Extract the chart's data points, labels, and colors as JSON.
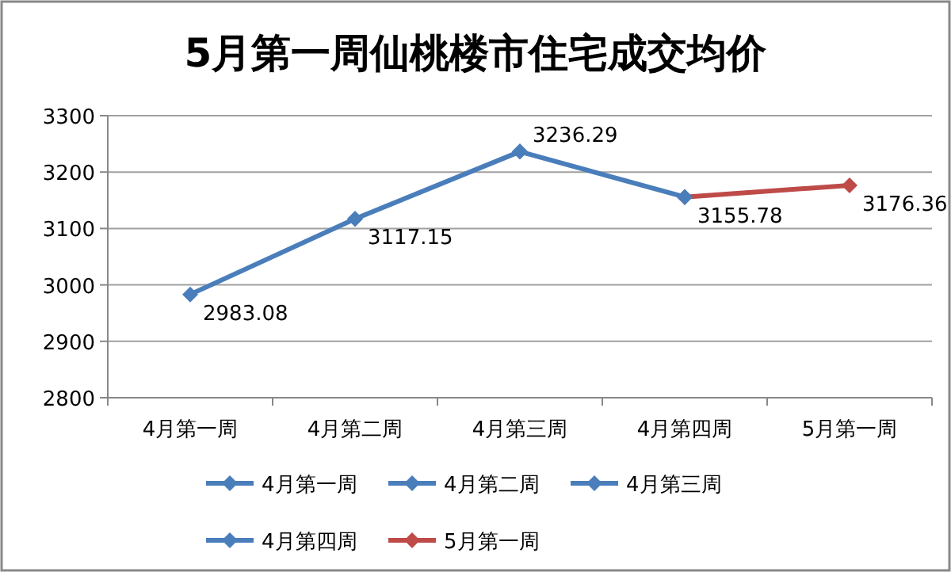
{
  "chart_data": {
    "type": "line",
    "title": "5月第一周仙桃楼市住宅成交均价",
    "categories": [
      "4月第一周",
      "4月第二周",
      "4月第三周",
      "4月第四周",
      "5月第一周"
    ],
    "series": [
      {
        "name": "4月第一周",
        "color": "#4a7ebb",
        "values": [
          2983.08,
          3117.15,
          null,
          null,
          null
        ],
        "value_labels": [
          "2983.08",
          null,
          null,
          null,
          null
        ]
      },
      {
        "name": "4月第二周",
        "color": "#4a7ebb",
        "values": [
          null,
          3117.15,
          3236.29,
          null,
          null
        ],
        "value_labels": [
          null,
          "3117.15",
          null,
          null,
          null
        ]
      },
      {
        "name": "4月第三周",
        "color": "#4a7ebb",
        "values": [
          null,
          null,
          3236.29,
          3155.78,
          null
        ],
        "value_labels": [
          null,
          null,
          "3236.29",
          null,
          null
        ]
      },
      {
        "name": "4月第四周",
        "color": "#4a7ebb",
        "values": [
          null,
          null,
          null,
          3155.78,
          null
        ],
        "value_labels": [
          null,
          null,
          null,
          "3155.78",
          null
        ]
      },
      {
        "name": "5月第一周",
        "color": "#be4b48",
        "values": [
          null,
          null,
          null,
          3155.78,
          3176.36
        ],
        "value_labels": [
          null,
          null,
          null,
          null,
          "3176.36"
        ]
      }
    ],
    "ylim": [
      2800,
      3300
    ],
    "yticks": [
      2800,
      2900,
      3000,
      3100,
      3200,
      3300
    ],
    "grid": "y",
    "legend": "bottom",
    "marker": "diamond",
    "line_style": "solid"
  }
}
